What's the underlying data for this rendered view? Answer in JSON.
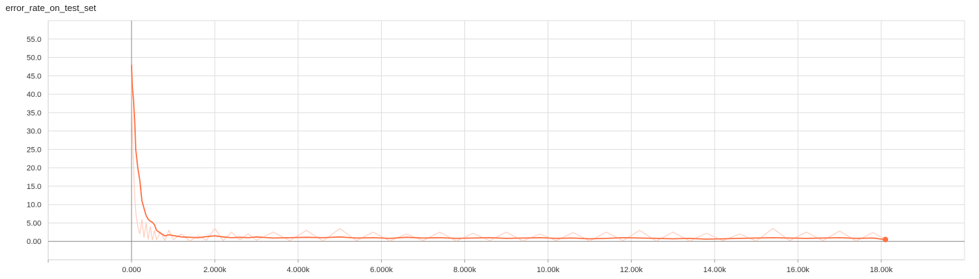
{
  "title": "error_rate_on_test_set",
  "chart_data": {
    "type": "line",
    "title": "error_rate_on_test_set",
    "xlabel": "",
    "ylabel": "",
    "xlim": [
      -2000,
      20000
    ],
    "ylim": [
      -5,
      60
    ],
    "grid": true,
    "x_ticks": [
      0,
      2000,
      4000,
      6000,
      8000,
      10000,
      12000,
      14000,
      16000,
      18000
    ],
    "x_tick_labels": [
      "0.000",
      "2.000k",
      "4.000k",
      "6.000k",
      "8.000k",
      "10.00k",
      "12.00k",
      "14.00k",
      "16.00k",
      "18.00k"
    ],
    "y_ticks": [
      0,
      5,
      10,
      15,
      20,
      25,
      30,
      35,
      40,
      45,
      50,
      55
    ],
    "y_tick_labels": [
      "0.00",
      "5.00",
      "10.0",
      "15.0",
      "20.0",
      "25.0",
      "30.0",
      "35.0",
      "40.0",
      "45.0",
      "50.0",
      "55.0"
    ],
    "series": [
      {
        "color": "#ff7043",
        "raw_color": "#ffccbc",
        "x": [
          0,
          20,
          50,
          80,
          100,
          150,
          200,
          250,
          300,
          350,
          400,
          450,
          500,
          550,
          600,
          700,
          800,
          900,
          1000,
          1200,
          1400,
          1600,
          1800,
          2000,
          2200,
          2400,
          2600,
          2800,
          3000,
          3400,
          3800,
          4200,
          4600,
          5000,
          5400,
          5800,
          6200,
          6600,
          7000,
          7400,
          7800,
          8200,
          8600,
          9000,
          9400,
          9800,
          10200,
          10600,
          11000,
          11400,
          11800,
          12200,
          12600,
          13000,
          13400,
          13800,
          14200,
          14600,
          15000,
          15400,
          15800,
          16200,
          16600,
          17000,
          17400,
          17800,
          18100
        ],
        "values": [
          48,
          42,
          38,
          32,
          25,
          20,
          16.5,
          11,
          9,
          7,
          6,
          5.5,
          5.2,
          4.5,
          3,
          2.2,
          1.5,
          1.8,
          1.6,
          1.2,
          1.1,
          1.0,
          1.3,
          1.5,
          1.2,
          1.0,
          1.1,
          1.0,
          1.2,
          0.9,
          1.0,
          1.1,
          1.0,
          1.2,
          0.9,
          1.0,
          0.8,
          1.1,
          0.9,
          1.0,
          0.8,
          0.9,
          1.0,
          0.8,
          0.9,
          1.0,
          0.8,
          0.9,
          0.7,
          0.8,
          1.0,
          0.9,
          0.8,
          0.7,
          0.8,
          0.6,
          0.7,
          0.8,
          0.9,
          1.0,
          0.9,
          0.8,
          0.9,
          1.0,
          0.8,
          0.9,
          0.5
        ],
        "raw_values": [
          48,
          30,
          20,
          12,
          8,
          4,
          2,
          6,
          1,
          5,
          0.5,
          4,
          0.3,
          3,
          0.5,
          2.5,
          0.2,
          3,
          0.5,
          2,
          0.1,
          1.5,
          0.3,
          3.5,
          0.2,
          2.5,
          0.4,
          2,
          0.3,
          2.5,
          0.2,
          3,
          0.1,
          3.5,
          0.2,
          2.5,
          0.1,
          2,
          0.2,
          2.5,
          0.1,
          2.2,
          0.2,
          2.5,
          0.1,
          2,
          0.2,
          2.4,
          0.1,
          2.5,
          0.2,
          3,
          0.1,
          2.5,
          0.1,
          2.2,
          0.2,
          2,
          0.1,
          3.5,
          0.2,
          2.5,
          0.2,
          2.8,
          0.1,
          2.4,
          0.5
        ]
      }
    ]
  }
}
